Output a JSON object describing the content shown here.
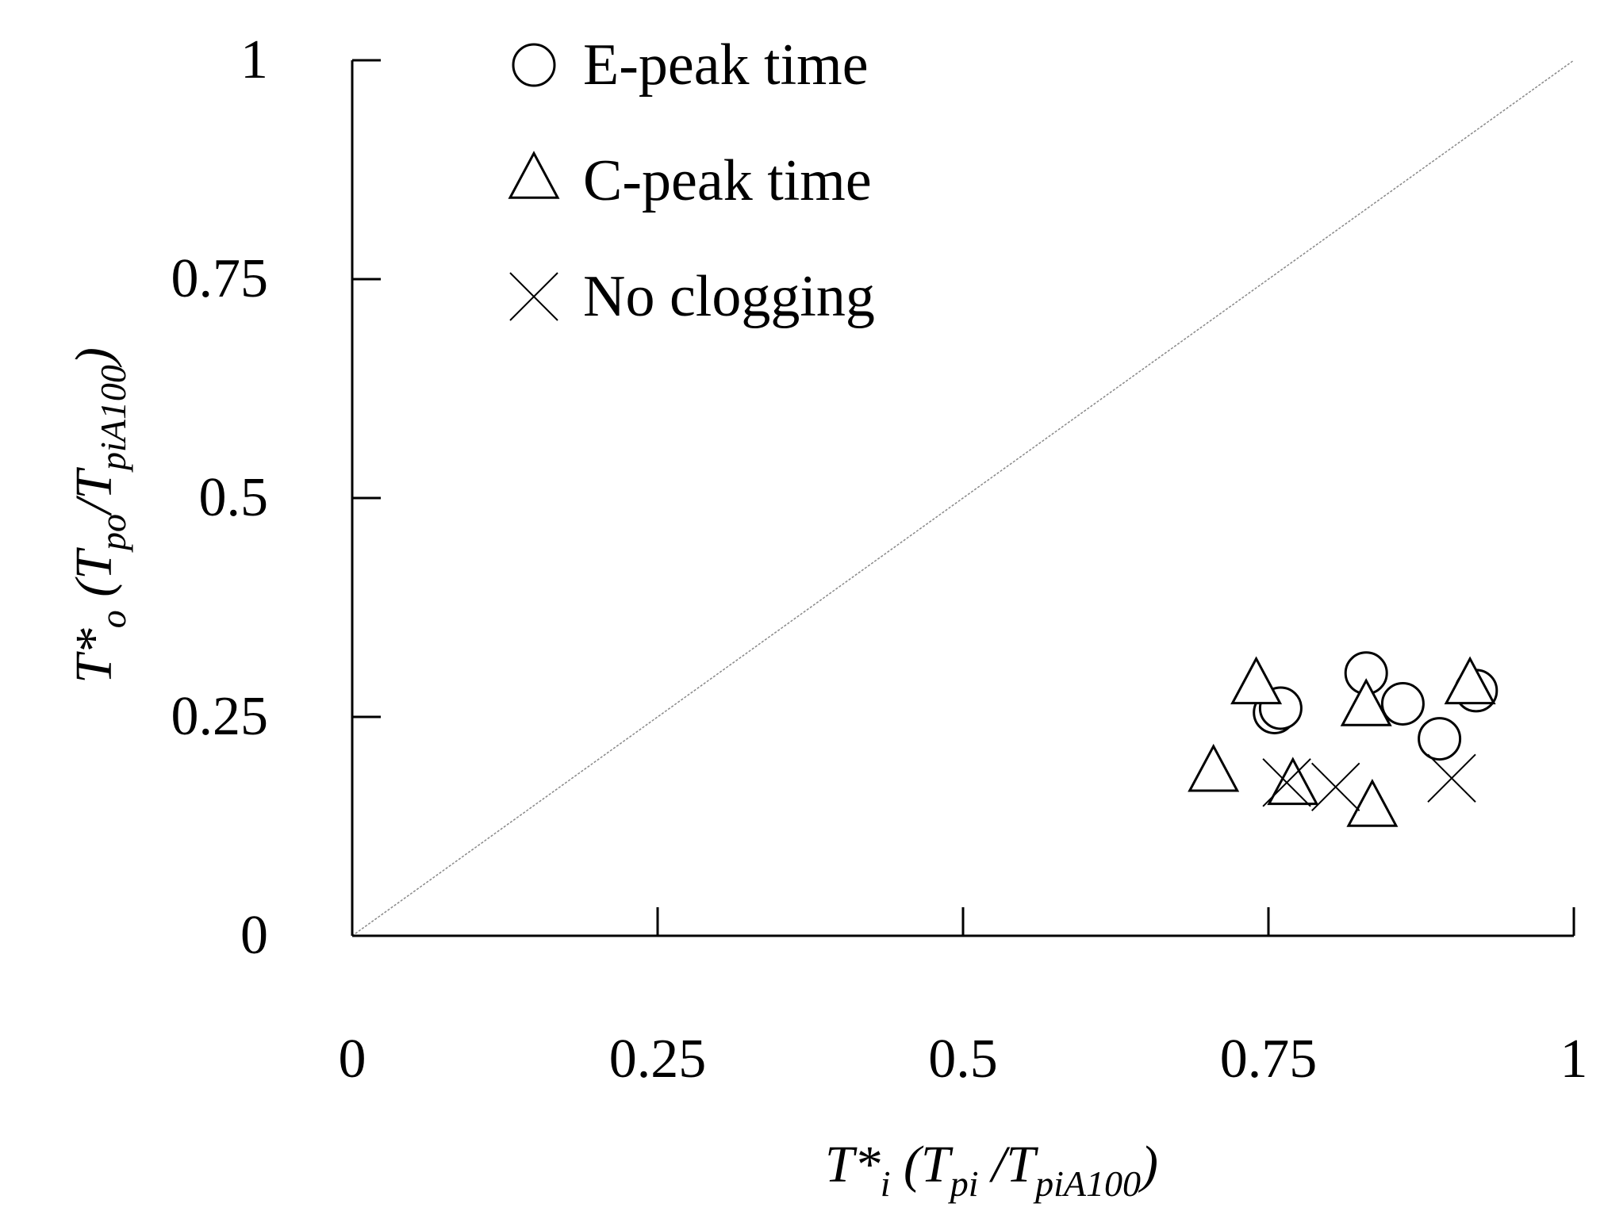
{
  "chart_data": {
    "type": "scatter",
    "xlim": [
      0,
      1
    ],
    "ylim": [
      0,
      1
    ],
    "x_ticks": [
      {
        "value": 0,
        "label": "0"
      },
      {
        "value": 0.25,
        "label": "0.25"
      },
      {
        "value": 0.5,
        "label": "0.5"
      },
      {
        "value": 0.75,
        "label": "0.75"
      },
      {
        "value": 1,
        "label": "1"
      }
    ],
    "y_ticks": [
      {
        "value": 0,
        "label": "0"
      },
      {
        "value": 0.25,
        "label": "0.25"
      },
      {
        "value": 0.5,
        "label": "0.5"
      },
      {
        "value": 0.75,
        "label": "0.75"
      },
      {
        "value": 1,
        "label": "1"
      }
    ],
    "xlabel": {
      "base": "T*",
      "sub": "i",
      "mid1": " (T",
      "sub2": "pi",
      "mid2": " /T",
      "sub3": "piA100",
      "end": ")"
    },
    "ylabel": {
      "base": "T*",
      "sub": "o",
      "mid1": " (T",
      "sub2": "po",
      "mid2": "/T",
      "sub3": "piA100",
      "end": ")"
    },
    "reference_line": {
      "x": [
        0,
        1
      ],
      "y": [
        0,
        1
      ],
      "color": "#888888"
    },
    "legend_position": "top-left",
    "series": [
      {
        "name": "E-peak time",
        "marker": "circle",
        "points": [
          {
            "x": 0.755,
            "y": 0.255
          },
          {
            "x": 0.76,
            "y": 0.26
          },
          {
            "x": 0.83,
            "y": 0.3
          },
          {
            "x": 0.86,
            "y": 0.265
          },
          {
            "x": 0.89,
            "y": 0.225
          },
          {
            "x": 0.92,
            "y": 0.28
          }
        ]
      },
      {
        "name": "C-peak time",
        "marker": "triangle",
        "points": [
          {
            "x": 0.705,
            "y": 0.185
          },
          {
            "x": 0.74,
            "y": 0.285
          },
          {
            "x": 0.77,
            "y": 0.17
          },
          {
            "x": 0.83,
            "y": 0.26
          },
          {
            "x": 0.835,
            "y": 0.145
          },
          {
            "x": 0.915,
            "y": 0.285
          }
        ]
      },
      {
        "name": "No clogging",
        "marker": "cross",
        "points": [
          {
            "x": 0.765,
            "y": 0.175
          },
          {
            "x": 0.805,
            "y": 0.17
          },
          {
            "x": 0.9,
            "y": 0.18
          }
        ]
      }
    ]
  }
}
